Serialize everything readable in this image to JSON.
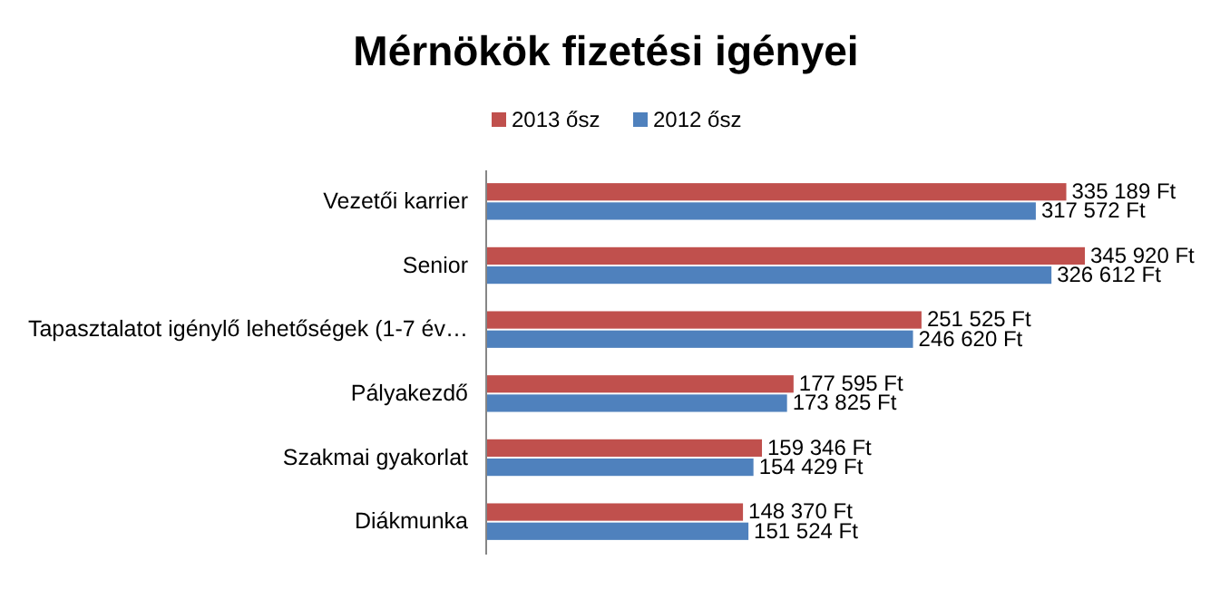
{
  "chart_data": {
    "type": "bar",
    "orientation": "horizontal",
    "title": "Mérnökök fizetési igényei",
    "legend": "top",
    "categories": [
      "Vezetői karrier",
      "Senior",
      "Tapasztalatot igénylő lehetőségek (1-7 év…",
      "Pályakezdő",
      "Szakmai gyakorlat",
      "Diákmunka"
    ],
    "series": [
      {
        "name": "2013 ősz",
        "color": "#c0504d",
        "values": [
          335189,
          345920,
          251525,
          177595,
          159346,
          148370
        ],
        "value_labels": [
          "335 189 Ft",
          "345 920 Ft",
          "251 525 Ft",
          "177 595 Ft",
          "159 346 Ft",
          "148 370 Ft"
        ]
      },
      {
        "name": "2012 ősz",
        "color": "#4f81bd",
        "values": [
          317572,
          326612,
          246620,
          173825,
          154429,
          151524
        ],
        "value_labels": [
          "317 572 Ft",
          "326 612 Ft",
          "246 620 Ft",
          "173 825 Ft",
          "154 429 Ft",
          "151 524 Ft"
        ]
      }
    ]
  }
}
